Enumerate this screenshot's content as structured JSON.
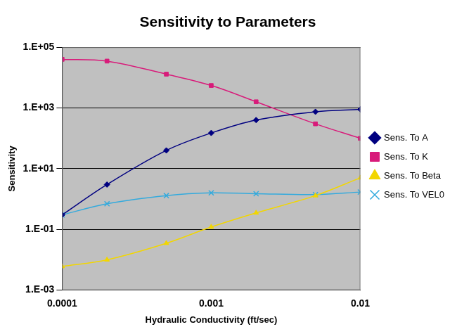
{
  "chart_data": {
    "type": "line",
    "title": "Sensitivity to Parameters",
    "x_label": "Hydraulic Conductivity (ft/sec)",
    "y_label": "Sensitivity",
    "log": true,
    "grid": true,
    "legend": "right",
    "x": [
      0.0001,
      0.0002,
      0.0005,
      0.001,
      0.002,
      0.005,
      0.01
    ],
    "xlim": [
      0.0001,
      0.01
    ],
    "xticks": [
      0.0001,
      0.001,
      0.01
    ],
    "ylim": [
      0.001,
      100000
    ],
    "yticks": [
      {
        "value": 0.001,
        "label": "1.E-03"
      },
      {
        "value": 0.1,
        "label": "1.E-01"
      },
      {
        "value": 10,
        "label": "1.E+01"
      },
      {
        "value": 1000,
        "label": "1.E+03"
      },
      {
        "value": 100000,
        "label": "1.E+05"
      }
    ],
    "series": [
      {
        "name": "Sens. To A",
        "color": "#000080",
        "marker": "diamond",
        "values": [
          0.3,
          3,
          40,
          150,
          400,
          750,
          900
        ]
      },
      {
        "name": "Sens. To K",
        "color": "#d81b7a",
        "marker": "square",
        "values": [
          40000,
          35000,
          13000,
          5500,
          1600,
          300,
          100
        ]
      },
      {
        "name": "Sens. To Beta",
        "color": "#f2d600",
        "marker": "triangle",
        "values": [
          0.006,
          0.01,
          0.035,
          0.12,
          0.35,
          1.3,
          5
        ]
      },
      {
        "name": "Sens. To VEL0",
        "color": "#33aadd",
        "marker": "x",
        "values": [
          0.3,
          0.7,
          1.3,
          1.6,
          1.5,
          1.4,
          1.7
        ]
      }
    ]
  }
}
